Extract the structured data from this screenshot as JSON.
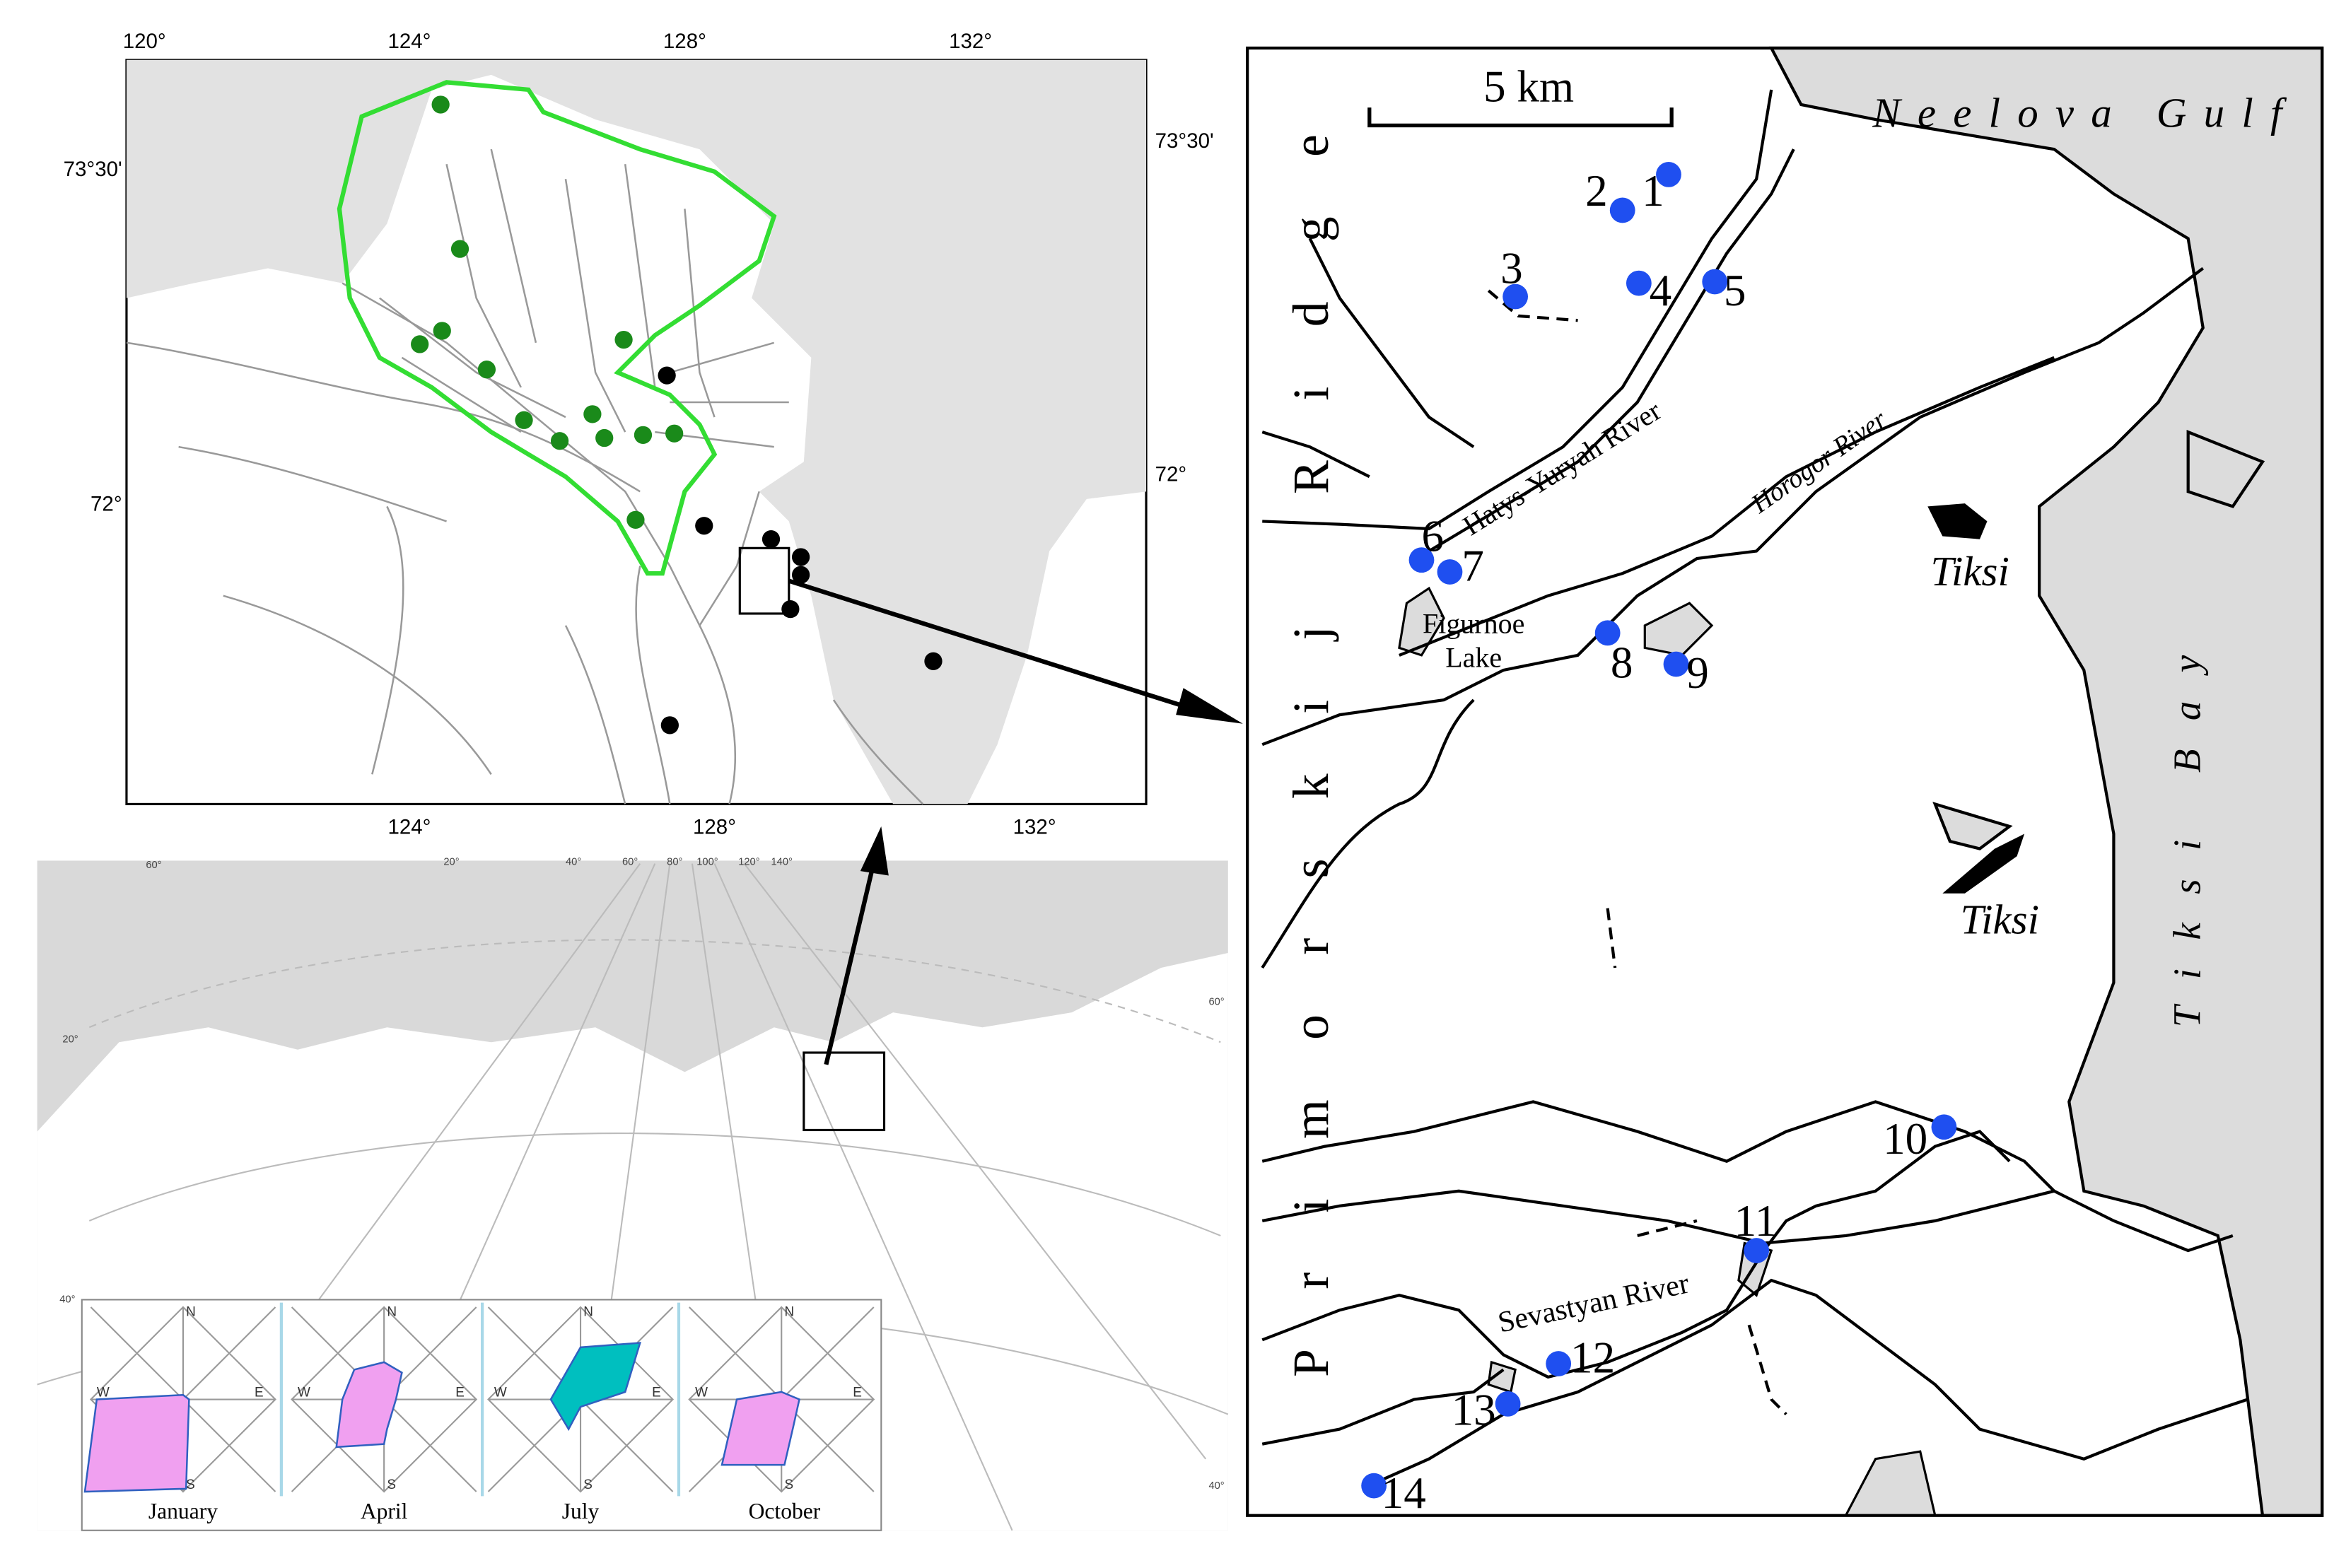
{
  "overview_map": {
    "top_lon_labels": [
      "120°",
      "124°",
      "128°",
      "132°"
    ],
    "bottom_lon_labels": [
      "124°",
      "128°",
      "132°"
    ],
    "left_lat_labels": [
      "73°30'",
      "72°"
    ],
    "right_lat_labels": [
      "73°30'",
      "72°"
    ]
  },
  "russia_map": {
    "graticule_labels": [
      "60°",
      "20°",
      "40°",
      "60°",
      "80°",
      "100°",
      "120°",
      "140°",
      "20°",
      "40°",
      "60°",
      "40°"
    ]
  },
  "wind_roses": {
    "compass_labels": [
      "N",
      "E",
      "S",
      "W"
    ],
    "months": [
      "January",
      "April",
      "July",
      "October"
    ]
  },
  "study_area": {
    "scale_label": "5 km",
    "gulf_label": "Neelova Gulf",
    "ridge_label": "Primorskij Ridge",
    "bay_label": "Tiksi Bay",
    "river_labels": [
      "Hatys-Yuryah River",
      "Horogor River",
      "Sevastyan River"
    ],
    "lake_label": [
      "Figurnoe",
      "Lake"
    ],
    "town_labels": [
      "Tiksi",
      "Tiksi"
    ],
    "stations": [
      "1",
      "2",
      "3",
      "4",
      "5",
      "6",
      "7",
      "8",
      "9",
      "10",
      "11",
      "12",
      "13",
      "14"
    ]
  }
}
